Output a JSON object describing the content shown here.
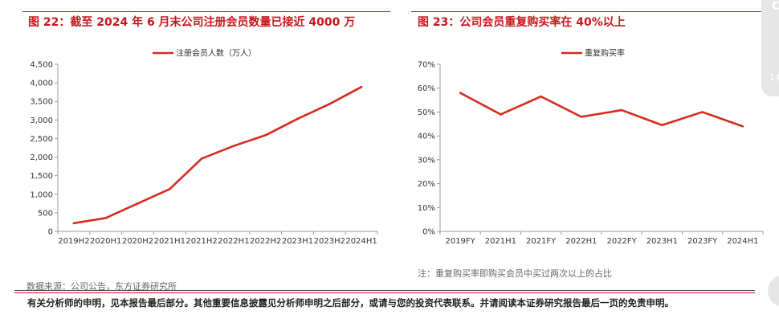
{
  "left": {
    "title": "图 22：截至 2024 年 6 月末公司注册会员数量已接近 4000 万",
    "source": "数据来源：公司公告，东方证券研究所"
  },
  "right": {
    "title": "图 23：公司会员重复购买率在 40%以上",
    "note": "注：重复购买率即购买会员中买过两次以上的占比"
  },
  "footer": {
    "disclaimer": "有关分析师的申明，见本报告最后部分。其他重要信息披露见分析师申明之后部分，或请与您的投资代表联系。并请阅读本证券研究报告最后一页的免责申明。"
  },
  "side_widget": {
    "letter_icon": "circle-letter-icon",
    "number": "14"
  },
  "chart_data": [
    {
      "type": "line",
      "title": "",
      "xlabel": "",
      "ylabel": "",
      "categories": [
        "2019H2",
        "2020H1",
        "2020H2",
        "2021H1",
        "2021H2",
        "2022H1",
        "2022H2",
        "2023H1",
        "2023H2",
        "2024H1"
      ],
      "series": [
        {
          "name": "注册会员人数（万人）",
          "color": "#d52b1e",
          "values": [
            220,
            360,
            750,
            1140,
            1960,
            2300,
            2590,
            3030,
            3430,
            3890
          ]
        }
      ],
      "ylim": [
        0,
        4500
      ],
      "yticks": [
        "0",
        "500",
        "1,000",
        "1,500",
        "2,000",
        "2,500",
        "3,000",
        "3,500",
        "4,000",
        "4,500"
      ],
      "grid": false,
      "legend_position": "top"
    },
    {
      "type": "line",
      "title": "",
      "xlabel": "",
      "ylabel": "",
      "categories": [
        "2019FY",
        "2021H1",
        "2021FY",
        "2022H1",
        "2022FY",
        "2023H1",
        "2023FY",
        "2024H1"
      ],
      "series": [
        {
          "name": "重复购买率",
          "color": "#d52b1e",
          "values": [
            0.58,
            0.49,
            0.565,
            0.48,
            0.508,
            0.445,
            0.5,
            0.44
          ]
        }
      ],
      "ylim": [
        0,
        0.7
      ],
      "yticks": [
        "0%",
        "10%",
        "20%",
        "30%",
        "40%",
        "50%",
        "60%",
        "70%"
      ],
      "grid": false,
      "legend_position": "top"
    }
  ]
}
